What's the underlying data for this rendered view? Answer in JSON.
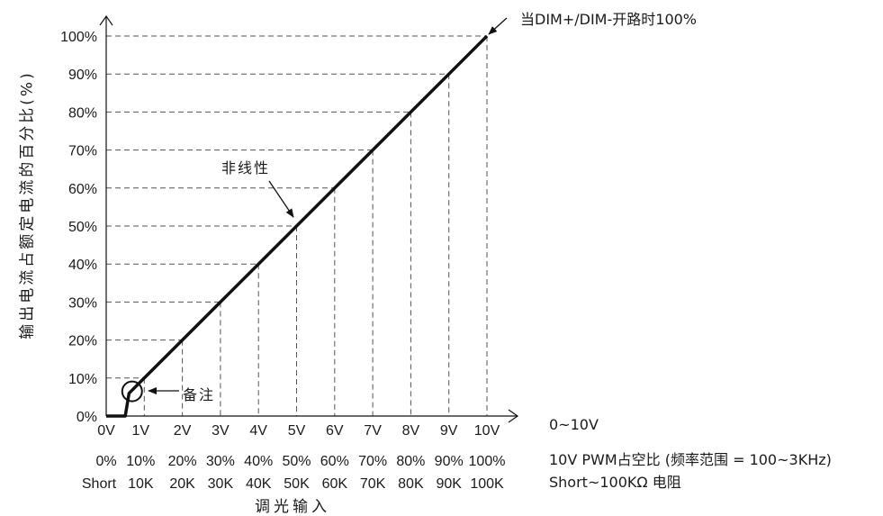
{
  "chart_data": {
    "type": "line",
    "title": "",
    "ylabel": "输出电流占额定电流的百分比(%)",
    "xlabel": "调光输入",
    "ylim": [
      0,
      100
    ],
    "xlim": [
      0,
      10
    ],
    "grid": "dashed guide lines at each tick",
    "y_ticks": [
      "0%",
      "10%",
      "20%",
      "30%",
      "40%",
      "50%",
      "60%",
      "70%",
      "80%",
      "90%",
      "100%"
    ],
    "x_tick_rows": [
      [
        "0V",
        "1V",
        "2V",
        "3V",
        "4V",
        "5V",
        "6V",
        "7V",
        "8V",
        "9V",
        "10V"
      ],
      [
        "0%",
        "10%",
        "20%",
        "30%",
        "40%",
        "50%",
        "60%",
        "70%",
        "80%",
        "90%",
        "100%"
      ],
      [
        "Short",
        "10K",
        "20K",
        "30K",
        "40K",
        "50K",
        "60K",
        "70K",
        "80K",
        "90K",
        "100K"
      ]
    ],
    "x_row_legend": [
      "0~10V",
      "10V PWM占空比 (频率范围 = 100~3KHz)",
      "Short~100KΩ 电阻"
    ],
    "series": [
      {
        "x": [
          0,
          0.5,
          0.6,
          1,
          2,
          3,
          4,
          5,
          6,
          7,
          8,
          9,
          10
        ],
        "values": [
          0,
          0,
          6,
          10,
          20,
          30,
          40,
          50,
          60,
          70,
          80,
          90,
          100
        ]
      }
    ],
    "annotations": {
      "top_right": "当DIM+/DIM-开路时100%",
      "nonlinear": "非线性",
      "note": "备注"
    },
    "colors": {
      "line": "#111111",
      "grid": "#555555",
      "axis": "#111111"
    }
  }
}
